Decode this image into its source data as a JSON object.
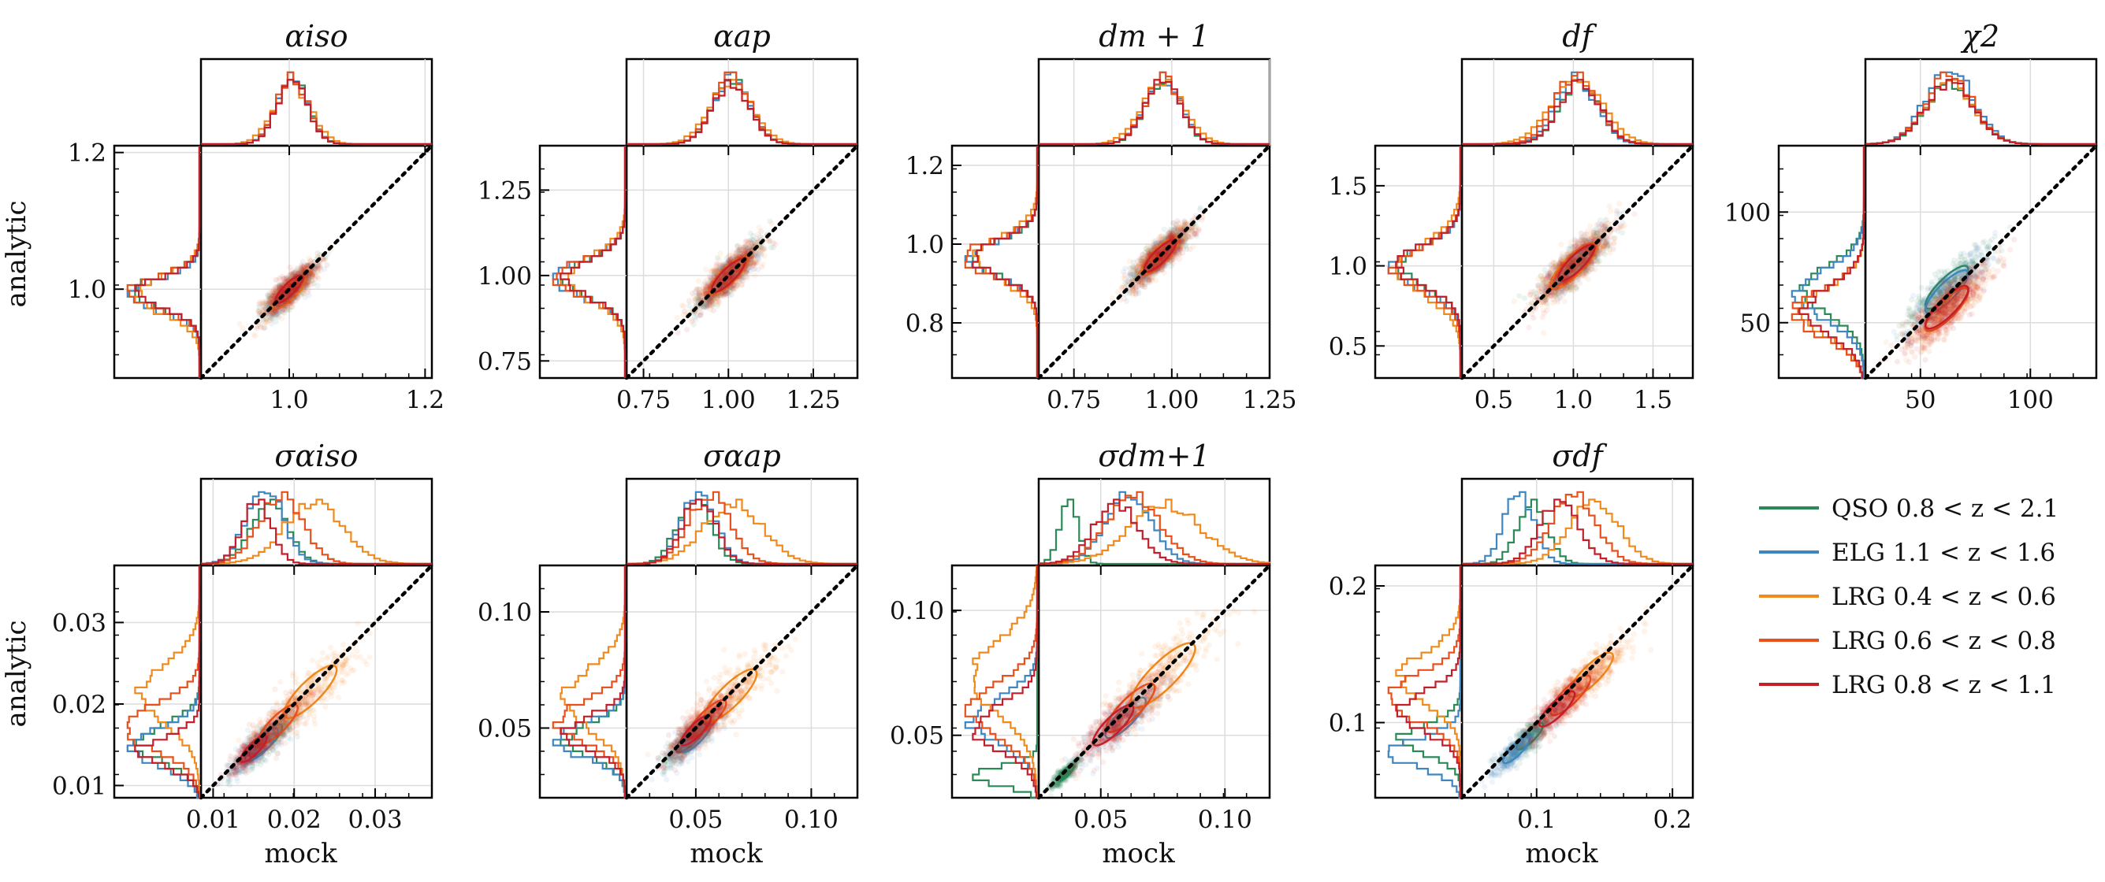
{
  "figure": {
    "x_axis_label": "mock",
    "y_axis_label": "analytic"
  },
  "legend": [
    {
      "name": "QSO 0.8 < z < 2.1",
      "color": "#2a8a57"
    },
    {
      "name": "ELG 1.1 < z < 1.6",
      "color": "#3d86c0"
    },
    {
      "name": "LRG 0.4 < z < 0.6",
      "color": "#f08a1c"
    },
    {
      "name": "LRG 0.6 < z < 0.8",
      "color": "#e8501c"
    },
    {
      "name": "LRG 0.8 < z < 1.1",
      "color": "#c21f2a"
    }
  ],
  "chart_data": [
    {
      "type": "scatter",
      "title": "αiso",
      "xlim": [
        0.87,
        1.21
      ],
      "ylim": [
        0.87,
        1.21
      ],
      "xticks": [
        "1.0",
        "1.2"
      ],
      "yticks": [
        "1.0",
        "1.2"
      ],
      "diagonal": true,
      "grid": true,
      "show_ylabel": true,
      "show_xlabel": false,
      "series": [
        {
          "name": "QSO 0.8 < z < 2.1",
          "center": [
            1.0,
            1.0
          ],
          "spread": 0.025
        },
        {
          "name": "ELG 1.1 < z < 1.6",
          "center": [
            1.0,
            0.995
          ],
          "spread": 0.025
        },
        {
          "name": "LRG 0.4 < z < 0.6",
          "center": [
            1.0,
            0.995
          ],
          "spread": 0.03
        },
        {
          "name": "LRG 0.6 < z < 0.8",
          "center": [
            1.0,
            1.0
          ],
          "spread": 0.025
        },
        {
          "name": "LRG 0.8 < z < 1.1",
          "center": [
            1.0,
            1.0
          ],
          "spread": 0.025
        }
      ]
    },
    {
      "type": "scatter",
      "title": "αap",
      "xlim": [
        0.7,
        1.38
      ],
      "ylim": [
        0.7,
        1.38
      ],
      "xticks": [
        "0.75",
        "1.00",
        "1.25"
      ],
      "yticks": [
        "0.75",
        "1.00",
        "1.25"
      ],
      "diagonal": true,
      "grid": true,
      "show_ylabel": false,
      "show_xlabel": false,
      "series": [
        {
          "name": "QSO 0.8 < z < 2.1",
          "center": [
            1.0,
            1.0
          ],
          "spread": 0.06
        },
        {
          "name": "ELG 1.1 < z < 1.6",
          "center": [
            1.0,
            1.0
          ],
          "spread": 0.06
        },
        {
          "name": "LRG 0.4 < z < 0.6",
          "center": [
            1.0,
            1.0
          ],
          "spread": 0.07
        },
        {
          "name": "LRG 0.6 < z < 0.8",
          "center": [
            1.0,
            1.0
          ],
          "spread": 0.06
        },
        {
          "name": "LRG 0.8 < z < 1.1",
          "center": [
            1.0,
            1.0
          ],
          "spread": 0.06
        }
      ]
    },
    {
      "type": "scatter",
      "title": "dm + 1",
      "xlim": [
        0.66,
        1.25
      ],
      "ylim": [
        0.66,
        1.25
      ],
      "xticks": [
        "0.75",
        "1.00",
        "1.25"
      ],
      "yticks": [
        "0.8",
        "1.0",
        "1.2"
      ],
      "diagonal": true,
      "grid": true,
      "show_ylabel": false,
      "show_xlabel": false,
      "series": [
        {
          "name": "QSO 0.8 < z < 2.1",
          "center": [
            0.97,
            0.97
          ],
          "spread": 0.05
        },
        {
          "name": "ELG 1.1 < z < 1.6",
          "center": [
            0.97,
            0.97
          ],
          "spread": 0.05
        },
        {
          "name": "LRG 0.4 < z < 0.6",
          "center": [
            0.97,
            0.97
          ],
          "spread": 0.06
        },
        {
          "name": "LRG 0.6 < z < 0.8",
          "center": [
            0.97,
            0.97
          ],
          "spread": 0.05
        },
        {
          "name": "LRG 0.8 < z < 1.1",
          "center": [
            0.97,
            0.97
          ],
          "spread": 0.05
        }
      ]
    },
    {
      "type": "scatter",
      "title": "df",
      "xlim": [
        0.3,
        1.75
      ],
      "ylim": [
        0.3,
        1.75
      ],
      "xticks": [
        "0.5",
        "1.0",
        "1.5"
      ],
      "yticks": [
        "0.5",
        "1.0",
        "1.5"
      ],
      "diagonal": true,
      "grid": true,
      "show_ylabel": false,
      "show_xlabel": false,
      "series": [
        {
          "name": "QSO 0.8 < z < 2.1",
          "center": [
            1.02,
            1.02
          ],
          "spread": 0.14
        },
        {
          "name": "ELG 1.1 < z < 1.6",
          "center": [
            1.0,
            1.0
          ],
          "spread": 0.14
        },
        {
          "name": "LRG 0.4 < z < 0.6",
          "center": [
            1.0,
            1.0
          ],
          "spread": 0.18
        },
        {
          "name": "LRG 0.6 < z < 0.8",
          "center": [
            1.0,
            1.0
          ],
          "spread": 0.15
        },
        {
          "name": "LRG 0.8 < z < 1.1",
          "center": [
            1.02,
            1.02
          ],
          "spread": 0.14
        }
      ]
    },
    {
      "type": "scatter",
      "title": "χ2",
      "xlim": [
        25,
        130
      ],
      "ylim": [
        25,
        130
      ],
      "xticks": [
        "50",
        "100"
      ],
      "yticks": [
        "50",
        "100"
      ],
      "diagonal": true,
      "grid": true,
      "show_ylabel": false,
      "show_xlabel": false,
      "series": [
        {
          "name": "QSO 0.8 < z < 2.1",
          "center": [
            62,
            66
          ],
          "spread": 12
        },
        {
          "name": "ELG 1.1 < z < 1.6",
          "center": [
            62,
            64
          ],
          "spread": 12
        },
        {
          "name": "LRG 0.4 < z < 0.6",
          "center": [
            62,
            56
          ],
          "spread": 12
        },
        {
          "name": "LRG 0.6 < z < 0.8",
          "center": [
            62,
            56
          ],
          "spread": 12
        },
        {
          "name": "LRG 0.8 < z < 1.1",
          "center": [
            62,
            57
          ],
          "spread": 12
        }
      ]
    },
    {
      "type": "scatter",
      "title": "σαiso",
      "xlim": [
        0.0085,
        0.037
      ],
      "ylim": [
        0.0085,
        0.037
      ],
      "xticks": [
        "0.01",
        "0.02",
        "0.03"
      ],
      "yticks": [
        "0.01",
        "0.02",
        "0.03"
      ],
      "diagonal": true,
      "grid": true,
      "show_ylabel": true,
      "show_xlabel": true,
      "series": [
        {
          "name": "QSO 0.8 < z < 2.1",
          "center": [
            0.0165,
            0.0155
          ],
          "spread": 0.0025
        },
        {
          "name": "ELG 1.1 < z < 1.6",
          "center": [
            0.016,
            0.015
          ],
          "spread": 0.0025
        },
        {
          "name": "LRG 0.4 < z < 0.6",
          "center": [
            0.022,
            0.0215
          ],
          "spread": 0.004
        },
        {
          "name": "LRG 0.6 < z < 0.8",
          "center": [
            0.018,
            0.0175
          ],
          "spread": 0.003
        },
        {
          "name": "LRG 0.8 < z < 1.1",
          "center": [
            0.015,
            0.0145
          ],
          "spread": 0.002
        }
      ]
    },
    {
      "type": "scatter",
      "title": "σαap",
      "xlim": [
        0.02,
        0.12
      ],
      "ylim": [
        0.02,
        0.12
      ],
      "xticks": [
        "0.05",
        "0.10"
      ],
      "yticks": [
        "0.05",
        "0.10"
      ],
      "diagonal": true,
      "grid": true,
      "show_ylabel": false,
      "show_xlabel": true,
      "series": [
        {
          "name": "QSO 0.8 < z < 2.1",
          "center": [
            0.048,
            0.046
          ],
          "spread": 0.008
        },
        {
          "name": "ELG 1.1 < z < 1.6",
          "center": [
            0.05,
            0.046
          ],
          "spread": 0.008
        },
        {
          "name": "LRG 0.4 < z < 0.6",
          "center": [
            0.065,
            0.064
          ],
          "spread": 0.014
        },
        {
          "name": "LRG 0.6 < z < 0.8",
          "center": [
            0.055,
            0.054
          ],
          "spread": 0.01
        },
        {
          "name": "LRG 0.8 < z < 1.1",
          "center": [
            0.05,
            0.049
          ],
          "spread": 0.008
        }
      ]
    },
    {
      "type": "scatter",
      "title": "σdm+1",
      "xlim": [
        0.025,
        0.118
      ],
      "ylim": [
        0.025,
        0.118
      ],
      "xticks": [
        "0.05",
        "0.10"
      ],
      "yticks": [
        "0.05",
        "0.10"
      ],
      "diagonal": true,
      "grid": true,
      "show_ylabel": false,
      "show_xlabel": true,
      "series": [
        {
          "name": "QSO 0.8 < z < 2.1",
          "center": [
            0.036,
            0.035
          ],
          "spread": 0.004
        },
        {
          "name": "ELG 1.1 < z < 1.6",
          "center": [
            0.06,
            0.057
          ],
          "spread": 0.01
        },
        {
          "name": "LRG 0.4 < z < 0.6",
          "center": [
            0.075,
            0.074
          ],
          "spread": 0.016
        },
        {
          "name": "LRG 0.6 < z < 0.8",
          "center": [
            0.062,
            0.061
          ],
          "spread": 0.012
        },
        {
          "name": "LRG 0.8 < z < 1.1",
          "center": [
            0.055,
            0.054
          ],
          "spread": 0.01
        }
      ]
    },
    {
      "type": "scatter",
      "title": "σdf",
      "xlim": [
        0.045,
        0.215
      ],
      "ylim": [
        0.045,
        0.215
      ],
      "xticks": [
        "0.1",
        "0.2"
      ],
      "yticks": [
        "0.1",
        "0.2"
      ],
      "diagonal": true,
      "grid": true,
      "show_ylabel": false,
      "show_xlabel": true,
      "series": [
        {
          "name": "QSO 0.8 < z < 2.1",
          "center": [
            0.095,
            0.09
          ],
          "spread": 0.012
        },
        {
          "name": "ELG 1.1 < z < 1.6",
          "center": [
            0.085,
            0.08
          ],
          "spread": 0.012
        },
        {
          "name": "LRG 0.4 < z < 0.6",
          "center": [
            0.14,
            0.135
          ],
          "spread": 0.02
        },
        {
          "name": "LRG 0.6 < z < 0.8",
          "center": [
            0.125,
            0.12
          ],
          "spread": 0.018
        },
        {
          "name": "LRG 0.8 < z < 1.1",
          "center": [
            0.115,
            0.11
          ],
          "spread": 0.016
        }
      ]
    }
  ]
}
